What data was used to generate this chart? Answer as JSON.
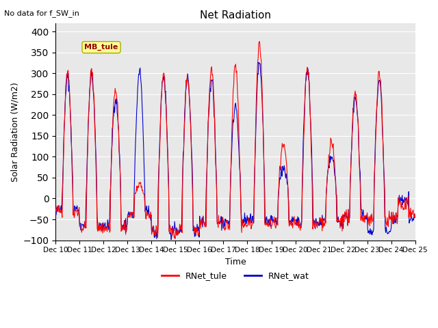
{
  "title": "Net Radiation",
  "subtitle": "No data for f_SW_in",
  "ylabel": "Solar Radiation (W/m2)",
  "xlabel": "Time",
  "ylim": [
    -100,
    420
  ],
  "yticks": [
    -100,
    -50,
    0,
    50,
    100,
    150,
    200,
    250,
    300,
    350,
    400
  ],
  "color_tule": "#ff0000",
  "color_wat": "#0000cc",
  "legend_label_tule": "RNet_tule",
  "legend_label_wat": "RNet_wat",
  "box_label": "MB_tule",
  "box_color": "#ffff99",
  "box_edge_color": "#aaaa00",
  "background_color": "#e8e8e8",
  "fig_background": "#ffffff",
  "n_days": 15,
  "start_day": 10
}
